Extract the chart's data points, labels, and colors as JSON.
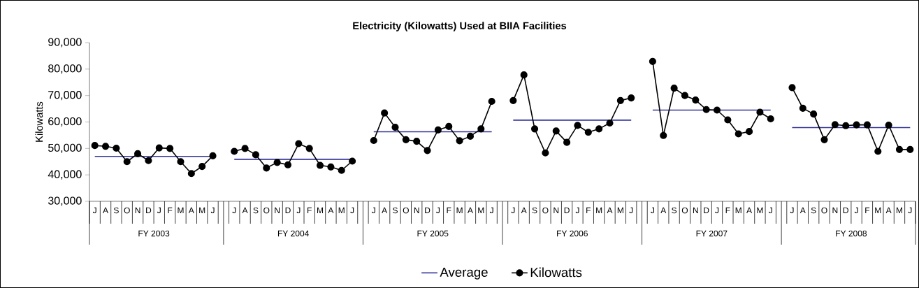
{
  "chart_data": {
    "type": "line",
    "title": "Electricity (Kilowatts) Used at BIIA Facilities",
    "ylabel": "Kilowatts",
    "categories": [
      "J",
      "A",
      "S",
      "O",
      "N",
      "D",
      "J",
      "F",
      "M",
      "A",
      "M",
      "J",
      null,
      "J",
      "A",
      "S",
      "O",
      "N",
      "D",
      "J",
      "F",
      "M",
      "A",
      "M",
      "J",
      null,
      "J",
      "A",
      "S",
      "O",
      "N",
      "D",
      "J",
      "F",
      "M",
      "A",
      "M",
      "J",
      null,
      "J",
      "A",
      "S",
      "O",
      "N",
      "D",
      "J",
      "F",
      "M",
      "A",
      "M",
      "J",
      null,
      "J",
      "A",
      "S",
      "O",
      "N",
      "D",
      "J",
      "F",
      "M",
      "A",
      "M",
      "J",
      null,
      "J",
      "A",
      "S",
      "O",
      "N",
      "D",
      "J",
      "F",
      "M",
      "A",
      "M",
      "J"
    ],
    "annotations": [
      "FY 2003",
      "FY 2004",
      "FY 2005",
      "FY 2006",
      "FY 2007",
      "FY 2008"
    ],
    "series": [
      {
        "name": "Average",
        "color": "#333399",
        "marker": "none",
        "values": [
          47000,
          47000,
          47000,
          47000,
          47000,
          47000,
          47000,
          47000,
          47000,
          47000,
          47000,
          47000,
          null,
          45900,
          45900,
          45900,
          45900,
          45900,
          45900,
          45900,
          45900,
          45900,
          45900,
          45900,
          45900,
          null,
          56300,
          56300,
          56300,
          56300,
          56300,
          56300,
          56300,
          56300,
          56300,
          56300,
          56300,
          56300,
          null,
          60700,
          60700,
          60700,
          60700,
          60700,
          60700,
          60700,
          60700,
          60700,
          60700,
          60700,
          60700,
          null,
          64500,
          64500,
          64500,
          64500,
          64500,
          64500,
          64500,
          64500,
          64500,
          64500,
          64500,
          64500,
          null,
          57900,
          57900,
          57900,
          57900,
          57900,
          57900,
          57900,
          57900,
          57900,
          57900,
          57900,
          57900
        ]
      },
      {
        "name": "Kilowatts",
        "color": "#000000",
        "values": [
          51100,
          50800,
          50100,
          45000,
          48000,
          45400,
          50200,
          50000,
          45000,
          40500,
          43200,
          47200,
          null,
          48900,
          50000,
          47600,
          42600,
          44700,
          43800,
          51800,
          50000,
          43600,
          43000,
          41700,
          45200,
          null,
          53000,
          63400,
          58000,
          53300,
          52700,
          49200,
          57000,
          58300,
          52900,
          54600,
          57400,
          67800,
          null,
          68100,
          77800,
          57400,
          48300,
          56600,
          52300,
          58700,
          56100,
          57400,
          59600,
          68100,
          69100,
          null,
          82900,
          54900,
          72800,
          70000,
          68300,
          64700,
          64500,
          60800,
          55500,
          56400,
          63700,
          61200,
          null,
          73000,
          65200,
          63000,
          53300,
          59000,
          58600,
          58900,
          58900,
          48900,
          58800,
          49600,
          49600
        ]
      }
    ],
    "marker": "circle",
    "line_style": "solid",
    "ylim": [
      30000,
      90000
    ],
    "yticks": [
      {
        "value": 30000,
        "label": "30,000"
      },
      {
        "value": 40000,
        "label": "40,000"
      },
      {
        "value": 50000,
        "label": "50,000"
      },
      {
        "value": 60000,
        "label": "60,000"
      },
      {
        "value": 70000,
        "label": "70,000"
      },
      {
        "value": 80000,
        "label": "80,000"
      },
      {
        "value": 90000,
        "label": "90,000"
      }
    ],
    "grid": false,
    "legend": "bottom"
  }
}
